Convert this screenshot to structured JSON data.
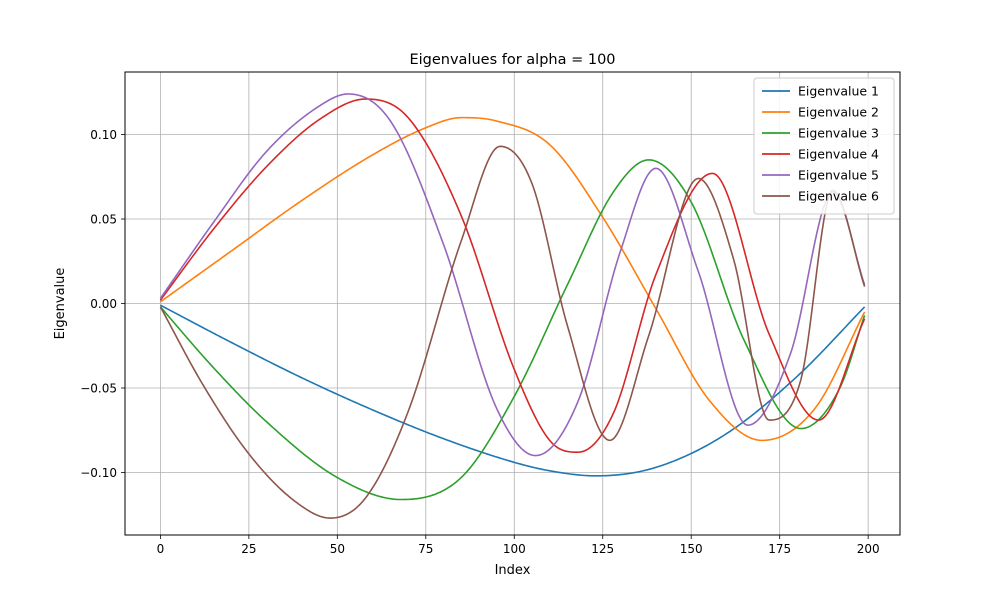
{
  "chart_data": {
    "type": "line",
    "title": "Eigenvalues for alpha = 100",
    "xlabel": "Index",
    "ylabel": "Eigenvalue",
    "xlim": [
      -10,
      209
    ],
    "ylim": [
      -0.137,
      0.137
    ],
    "xticks": [
      0,
      25,
      50,
      75,
      100,
      125,
      150,
      175,
      200
    ],
    "yticks": [
      -0.1,
      -0.05,
      0.0,
      0.05,
      0.1
    ],
    "xtick_labels": [
      "0",
      "25",
      "50",
      "75",
      "100",
      "125",
      "150",
      "175",
      "200"
    ],
    "ytick_labels": [
      "−0.10",
      "−0.05",
      "0.00",
      "0.05",
      "0.10"
    ],
    "grid": true,
    "legend_position": "top-right",
    "series": [
      {
        "name": "Eigenvalue 1",
        "color": "#1f77b4",
        "x": [
          0,
          20,
          40,
          60,
          80,
          100,
          110,
          123,
          140,
          160,
          180,
          199
        ],
        "y": [
          -0.001,
          -0.023,
          -0.044,
          -0.063,
          -0.08,
          -0.094,
          -0.099,
          -0.102,
          -0.097,
          -0.077,
          -0.043,
          -0.002
        ]
      },
      {
        "name": "Eigenvalue 2",
        "color": "#ff7f0e",
        "x": [
          0,
          20,
          40,
          60,
          75,
          85,
          95,
          110,
          125,
          140,
          155,
          170,
          185,
          199
        ],
        "y": [
          0.001,
          0.031,
          0.061,
          0.088,
          0.104,
          0.11,
          0.108,
          0.094,
          0.051,
          -0.003,
          -0.057,
          -0.081,
          -0.062,
          -0.005
        ]
      },
      {
        "name": "Eigenvalue 3",
        "color": "#2ca02c",
        "x": [
          0,
          15,
          30,
          50,
          68,
          85,
          100,
          115,
          128,
          138,
          150,
          165,
          181,
          192,
          199
        ],
        "y": [
          -0.002,
          -0.038,
          -0.07,
          -0.103,
          -0.116,
          -0.103,
          -0.055,
          0.011,
          0.066,
          0.085,
          0.06,
          -0.022,
          -0.074,
          -0.05,
          -0.007
        ]
      },
      {
        "name": "Eigenvalue 4",
        "color": "#d62728",
        "x": [
          0,
          15,
          30,
          45,
          58,
          70,
          85,
          100,
          110,
          118,
          128,
          140,
          156,
          172,
          186,
          199
        ],
        "y": [
          0.002,
          0.044,
          0.081,
          0.109,
          0.121,
          0.11,
          0.052,
          -0.039,
          -0.081,
          -0.088,
          -0.065,
          0.017,
          0.077,
          -0.018,
          -0.069,
          -0.009
        ]
      },
      {
        "name": "Eigenvalue 5",
        "color": "#9467bd",
        "x": [
          0,
          15,
          30,
          45,
          53,
          65,
          80,
          95,
          106,
          118,
          130,
          140,
          152,
          166,
          178,
          190,
          199
        ],
        "y": [
          0.003,
          0.048,
          0.09,
          0.117,
          0.124,
          0.108,
          0.035,
          -0.062,
          -0.09,
          -0.058,
          0.031,
          0.08,
          0.019,
          -0.072,
          -0.03,
          0.066,
          0.011
        ]
      },
      {
        "name": "Eigenvalue 6",
        "color": "#8c564b",
        "x": [
          0,
          12,
          25,
          38,
          48,
          58,
          70,
          85,
          96,
          105,
          115,
          127,
          138,
          152,
          162,
          172,
          181,
          190,
          199
        ],
        "y": [
          -0.002,
          -0.048,
          -0.089,
          -0.117,
          -0.127,
          -0.115,
          -0.064,
          0.037,
          0.093,
          0.071,
          -0.013,
          -0.081,
          -0.019,
          0.074,
          0.026,
          -0.069,
          -0.045,
          0.067,
          0.01
        ]
      }
    ]
  }
}
